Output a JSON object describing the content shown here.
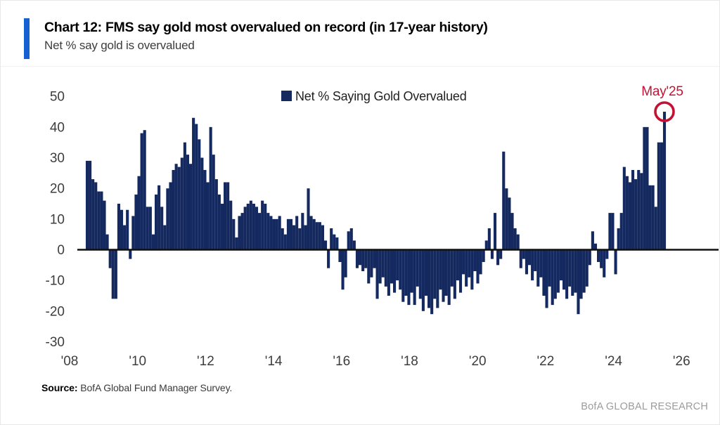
{
  "header": {
    "title": "Chart 12: FMS say gold most overvalued on record (in 17-year history)",
    "subtitle": "Net % say gold is overvalued"
  },
  "footer": {
    "source_label": "Source:",
    "source_text": " BofA Global Fund Manager Survey.",
    "branding": "BofA GLOBAL RESEARCH"
  },
  "colors": {
    "bar_navy": "#14295f",
    "accent_blue": "#1661d2",
    "annotation_red": "#c41235",
    "axis_text": "#3d3d3d",
    "zero_line": "#111111"
  },
  "chart_data": {
    "type": "bar",
    "legend": "Net % Saying Gold Overvalued",
    "xlabel": "",
    "ylabel": "Net % say gold is overvalued",
    "frequency": "monthly",
    "x_start": "2008-08",
    "x_end": "2025-05",
    "ylim": [
      -30,
      50
    ],
    "grid": false,
    "legend_position": "top-center",
    "yticks": [
      50,
      40,
      30,
      20,
      10,
      0,
      -10,
      -20,
      -30
    ],
    "xticks": [
      "'08",
      "'10",
      "'12",
      "'14",
      "'16",
      "'18",
      "'20",
      "'22",
      "'24",
      "'26"
    ],
    "highlight": {
      "label": "May'25",
      "value": 45
    },
    "values": [
      29,
      29,
      23,
      22,
      19,
      19,
      16,
      5,
      -6,
      -16,
      -16,
      15,
      13,
      8,
      13,
      -3,
      11,
      18,
      24,
      38,
      39,
      14,
      14,
      5,
      18,
      21,
      14,
      8,
      20,
      22,
      26,
      28,
      27,
      30,
      35,
      31,
      28,
      43,
      41,
      36,
      30,
      26,
      22,
      40,
      31,
      23,
      18,
      15,
      22,
      22,
      16,
      10,
      4,
      11,
      12,
      14,
      15,
      16,
      15,
      14,
      12,
      16,
      15,
      12,
      11,
      10,
      10,
      11,
      7,
      5,
      10,
      10,
      8,
      11,
      7,
      12,
      8,
      20,
      11,
      10,
      9,
      9,
      8,
      3,
      -6,
      7,
      5,
      4,
      -4,
      -13,
      -9,
      6,
      7,
      3,
      -6,
      -5,
      -7,
      -6,
      -11,
      -9,
      -6,
      -16,
      -11,
      -9,
      -12,
      -15,
      -11,
      -14,
      -10,
      -13,
      -17,
      -15,
      -18,
      -14,
      -18,
      -12,
      -16,
      -20,
      -15,
      -19,
      -21,
      -16,
      -19,
      -13,
      -17,
      -15,
      -18,
      -12,
      -16,
      -10,
      -14,
      -8,
      -12,
      -9,
      -13,
      -7,
      -11,
      -8,
      -4,
      3,
      7,
      -3,
      12,
      -5,
      -3,
      32,
      20,
      17,
      12,
      7,
      5,
      -6,
      -3,
      -8,
      -5,
      -10,
      -7,
      -12,
      -9,
      -15,
      -19,
      -12,
      -18,
      -16,
      -14,
      -10,
      -13,
      -16,
      -12,
      -15,
      -14,
      -21,
      -16,
      -14,
      -12,
      -5,
      6,
      2,
      -4,
      -6,
      -9,
      -3,
      12,
      12,
      -8,
      7,
      12,
      27,
      24,
      22,
      26,
      23,
      26,
      25,
      40,
      40,
      21,
      21,
      14,
      35,
      35,
      45
    ]
  }
}
